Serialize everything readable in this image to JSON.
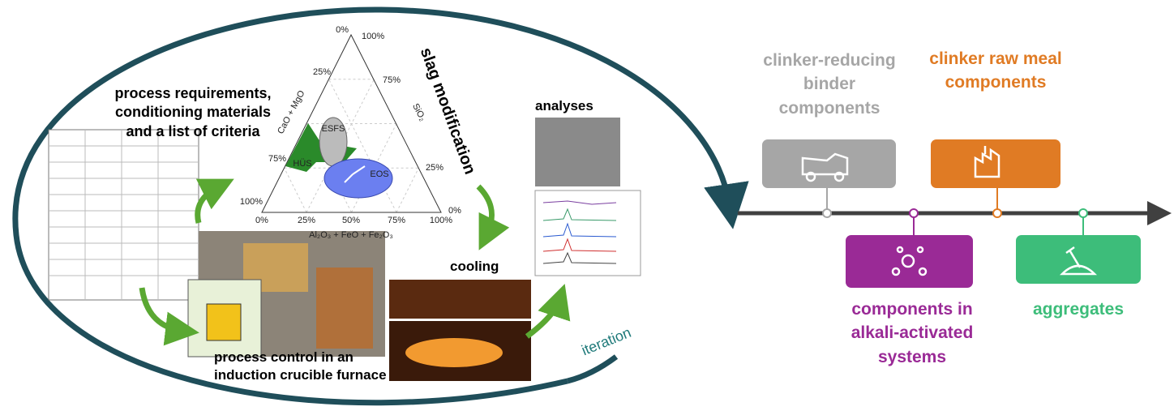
{
  "process": {
    "requirements": "process requirements, conditioning materials and a list of criteria",
    "slag_modification": "slag modification",
    "analyses": "analyses",
    "cooling": "cooling",
    "process_control": "process control in an induction crucible furnace",
    "iteration": "iteration"
  },
  "ternary": {
    "axes": {
      "left": "CaO + MgO",
      "right": "SiO₂",
      "bottom": "Al₂O₃ + FeO + Fe₂O₃"
    },
    "regions": [
      "ESFS",
      "HÜS",
      "EOS"
    ],
    "left_ticks": [
      "0%",
      "25%",
      "75%",
      "100%"
    ],
    "right_ticks": [
      "100%",
      "75%",
      "25%",
      "0%"
    ],
    "bottom_ticks": [
      "0%",
      "25%",
      "50%",
      "75%",
      "100%"
    ]
  },
  "applications": [
    {
      "label": "clinker-reducing binder components"
    },
    {
      "label": "clinker raw meal components"
    },
    {
      "label": "components in alkali-activated systems"
    },
    {
      "label": "aggregates"
    }
  ]
}
